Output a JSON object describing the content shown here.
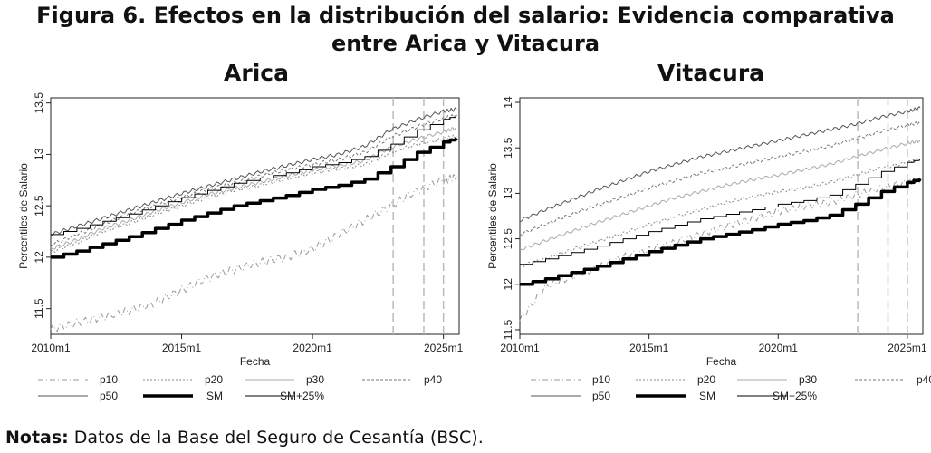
{
  "figure": {
    "title_line1": "Figura 6. Efectos en la distribución del salario: Evidencia comparativa",
    "title_line2": "entre Arica y Vitacura"
  },
  "notes": {
    "label": "Notas:",
    "text": " Datos de la Base del Seguro de Cesantía (BSC)."
  },
  "chart_data": [
    {
      "type": "line",
      "title": "Arica",
      "xlabel": "Fecha",
      "ylabel": "Percentiles de Salario",
      "xlim": [
        2010.0,
        2025.6
      ],
      "ylim": [
        11.25,
        13.55
      ],
      "xticks": [
        2010,
        2015,
        2020,
        2025
      ],
      "xtick_labels": [
        "2010m1",
        "2015m1",
        "2020m1",
        "2025m1"
      ],
      "yticks": [
        11.5,
        12,
        12.5,
        13,
        13.5
      ],
      "ytick_labels": [
        "11.5",
        "12",
        "12.5",
        "13",
        "13.5"
      ],
      "vlines": [
        2023.08,
        2024.25,
        2025.0
      ],
      "series": [
        {
          "name": "p10",
          "x": [
            2010.0,
            2011.0,
            2012.0,
            2013.0,
            2014.0,
            2015.0,
            2016.0,
            2017.0,
            2018.0,
            2019.0,
            2020.0,
            2021.0,
            2022.0,
            2023.0,
            2024.0,
            2025.0,
            2025.5
          ],
          "y": [
            11.3,
            11.36,
            11.42,
            11.48,
            11.56,
            11.68,
            11.8,
            11.88,
            11.95,
            12.0,
            12.08,
            12.22,
            12.36,
            12.5,
            12.65,
            12.75,
            12.78
          ]
        },
        {
          "name": "p20",
          "x": [
            2010.0,
            2011.0,
            2012.0,
            2013.0,
            2014.0,
            2015.0,
            2016.0,
            2017.0,
            2018.0,
            2019.0,
            2020.0,
            2021.0,
            2022.0,
            2023.0,
            2024.0,
            2025.0,
            2025.5
          ],
          "y": [
            12.05,
            12.14,
            12.25,
            12.33,
            12.42,
            12.5,
            12.58,
            12.65,
            12.7,
            12.76,
            12.82,
            12.86,
            12.9,
            13.02,
            13.1,
            13.15,
            13.18
          ]
        },
        {
          "name": "p30",
          "x": [
            2010.0,
            2011.0,
            2012.0,
            2013.0,
            2014.0,
            2015.0,
            2016.0,
            2017.0,
            2018.0,
            2019.0,
            2020.0,
            2021.0,
            2022.0,
            2023.0,
            2024.0,
            2025.0,
            2025.5
          ],
          "y": [
            12.08,
            12.17,
            12.28,
            12.36,
            12.45,
            12.53,
            12.61,
            12.67,
            12.73,
            12.79,
            12.85,
            12.89,
            12.94,
            13.07,
            13.15,
            13.22,
            13.26
          ]
        },
        {
          "name": "p40",
          "x": [
            2010.0,
            2011.0,
            2012.0,
            2013.0,
            2014.0,
            2015.0,
            2016.0,
            2017.0,
            2018.0,
            2019.0,
            2020.0,
            2021.0,
            2022.0,
            2023.0,
            2024.0,
            2025.0,
            2025.5
          ],
          "y": [
            12.12,
            12.22,
            12.32,
            12.42,
            12.5,
            12.58,
            12.66,
            12.72,
            12.79,
            12.85,
            12.9,
            12.95,
            13.02,
            13.17,
            13.27,
            13.35,
            13.38
          ]
        },
        {
          "name": "p50",
          "x": [
            2010.0,
            2011.0,
            2012.0,
            2013.0,
            2014.0,
            2015.0,
            2016.0,
            2017.0,
            2018.0,
            2019.0,
            2020.0,
            2021.0,
            2022.0,
            2023.0,
            2024.0,
            2025.0,
            2025.5
          ],
          "y": [
            12.22,
            12.3,
            12.38,
            12.46,
            12.54,
            12.62,
            12.69,
            12.76,
            12.83,
            12.89,
            12.95,
            13.0,
            13.08,
            13.24,
            13.34,
            13.42,
            13.44
          ]
        },
        {
          "name": "SM",
          "x": [
            2010.0,
            2011.0,
            2012.0,
            2013.0,
            2014.0,
            2015.0,
            2016.0,
            2017.0,
            2018.0,
            2019.0,
            2020.0,
            2021.0,
            2022.0,
            2023.0,
            2024.0,
            2025.0,
            2025.5
          ],
          "y": [
            12.0,
            12.06,
            12.13,
            12.2,
            12.28,
            12.36,
            12.43,
            12.5,
            12.55,
            12.6,
            12.66,
            12.7,
            12.76,
            12.88,
            13.02,
            13.12,
            13.16
          ]
        },
        {
          "name": "SM+25%",
          "x": [
            2010.0,
            2011.0,
            2012.0,
            2013.0,
            2014.0,
            2015.0,
            2016.0,
            2017.0,
            2018.0,
            2019.0,
            2020.0,
            2021.0,
            2022.0,
            2023.0,
            2024.0,
            2025.0,
            2025.5
          ],
          "y": [
            12.22,
            12.28,
            12.35,
            12.42,
            12.5,
            12.58,
            12.65,
            12.72,
            12.77,
            12.82,
            12.88,
            12.92,
            12.98,
            13.1,
            13.24,
            13.34,
            13.38
          ]
        }
      ]
    },
    {
      "type": "line",
      "title": "Vitacura",
      "xlabel": "Fecha",
      "ylabel": "Percentiles de Salario",
      "xlim": [
        2010.0,
        2025.6
      ],
      "ylim": [
        11.45,
        14.05
      ],
      "xticks": [
        2010,
        2015,
        2020,
        2025
      ],
      "xtick_labels": [
        "2010m1",
        "2015m1",
        "2020m1",
        "2025m1"
      ],
      "yticks": [
        11.5,
        12,
        12.5,
        13,
        13.5,
        14
      ],
      "ytick_labels": [
        "11.5",
        "12",
        "12.5",
        "13",
        "13.5",
        "14"
      ],
      "vlines": [
        2023.08,
        2024.25,
        2025.0
      ],
      "series": [
        {
          "name": "p10",
          "x": [
            2010.0,
            2011.0,
            2012.0,
            2013.0,
            2014.0,
            2015.0,
            2016.0,
            2017.0,
            2018.0,
            2019.0,
            2020.0,
            2021.0,
            2022.0,
            2023.0,
            2024.0,
            2025.0,
            2025.5
          ],
          "y": [
            11.6,
            11.98,
            12.08,
            12.18,
            12.3,
            12.38,
            12.46,
            12.55,
            12.64,
            12.72,
            12.8,
            12.86,
            12.9,
            12.98,
            13.06,
            13.12,
            13.15
          ]
        },
        {
          "name": "p20",
          "x": [
            2010.0,
            2011.0,
            2012.0,
            2013.0,
            2014.0,
            2015.0,
            2016.0,
            2017.0,
            2018.0,
            2019.0,
            2020.0,
            2021.0,
            2022.0,
            2023.0,
            2024.0,
            2025.0,
            2025.5
          ],
          "y": [
            12.2,
            12.28,
            12.38,
            12.47,
            12.56,
            12.66,
            12.74,
            12.82,
            12.9,
            12.96,
            13.02,
            13.06,
            13.12,
            13.2,
            13.28,
            13.34,
            13.38
          ]
        },
        {
          "name": "p30",
          "x": [
            2010.0,
            2011.0,
            2012.0,
            2013.0,
            2014.0,
            2015.0,
            2016.0,
            2017.0,
            2018.0,
            2019.0,
            2020.0,
            2021.0,
            2022.0,
            2023.0,
            2024.0,
            2025.0,
            2025.5
          ],
          "y": [
            12.38,
            12.48,
            12.58,
            12.68,
            12.77,
            12.86,
            12.95,
            13.02,
            13.09,
            13.15,
            13.2,
            13.26,
            13.32,
            13.4,
            13.48,
            13.55,
            13.58
          ]
        },
        {
          "name": "p40",
          "x": [
            2010.0,
            2011.0,
            2012.0,
            2013.0,
            2014.0,
            2015.0,
            2016.0,
            2017.0,
            2018.0,
            2019.0,
            2020.0,
            2021.0,
            2022.0,
            2023.0,
            2024.0,
            2025.0,
            2025.5
          ],
          "y": [
            12.55,
            12.66,
            12.77,
            12.87,
            12.96,
            13.06,
            13.14,
            13.22,
            13.28,
            13.34,
            13.4,
            13.46,
            13.52,
            13.6,
            13.68,
            13.75,
            13.78
          ]
        },
        {
          "name": "p50",
          "x": [
            2010.0,
            2011.0,
            2012.0,
            2013.0,
            2014.0,
            2015.0,
            2016.0,
            2017.0,
            2018.0,
            2019.0,
            2020.0,
            2021.0,
            2022.0,
            2023.0,
            2024.0,
            2025.0,
            2025.5
          ],
          "y": [
            12.7,
            12.82,
            12.93,
            13.04,
            13.14,
            13.24,
            13.32,
            13.4,
            13.46,
            13.52,
            13.58,
            13.64,
            13.7,
            13.76,
            13.84,
            13.9,
            13.94
          ]
        },
        {
          "name": "SM",
          "x": [
            2010.0,
            2011.0,
            2012.0,
            2013.0,
            2014.0,
            2015.0,
            2016.0,
            2017.0,
            2018.0,
            2019.0,
            2020.0,
            2021.0,
            2022.0,
            2023.0,
            2024.0,
            2025.0,
            2025.5
          ],
          "y": [
            12.0,
            12.06,
            12.13,
            12.2,
            12.28,
            12.36,
            12.43,
            12.5,
            12.55,
            12.6,
            12.66,
            12.7,
            12.76,
            12.88,
            13.02,
            13.12,
            13.16
          ]
        },
        {
          "name": "SM+25%",
          "x": [
            2010.0,
            2011.0,
            2012.0,
            2013.0,
            2014.0,
            2015.0,
            2016.0,
            2017.0,
            2018.0,
            2019.0,
            2020.0,
            2021.0,
            2022.0,
            2023.0,
            2024.0,
            2025.0,
            2025.5
          ],
          "y": [
            12.22,
            12.28,
            12.35,
            12.42,
            12.5,
            12.58,
            12.65,
            12.72,
            12.77,
            12.82,
            12.88,
            12.92,
            12.98,
            13.1,
            13.24,
            13.34,
            13.38
          ]
        }
      ]
    }
  ],
  "legend": {
    "entries": [
      "p10",
      "p20",
      "p30",
      "p40",
      "p50",
      "SM",
      "SM+25%"
    ]
  }
}
